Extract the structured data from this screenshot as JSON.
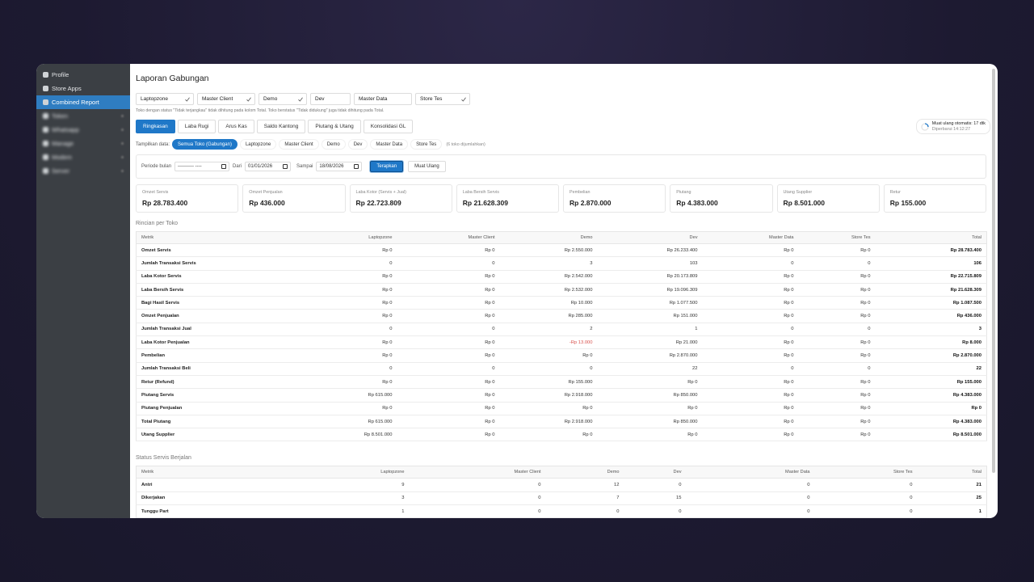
{
  "sidebar": {
    "items": [
      {
        "label": "Profile",
        "blurred": false
      },
      {
        "label": "Store Apps",
        "blurred": false
      },
      {
        "label": "Combined Report",
        "blurred": false
      },
      {
        "label": "Token",
        "blurred": true
      },
      {
        "label": "Whatsapp",
        "blurred": true
      },
      {
        "label": "Manage",
        "blurred": true
      },
      {
        "label": "Modem",
        "blurred": true
      },
      {
        "label": "Server",
        "blurred": true
      }
    ],
    "active": 2
  },
  "header": {
    "title": "Laporan Gabungan"
  },
  "stores": [
    {
      "label": "Laptopzone",
      "checked": true
    },
    {
      "label": "Master Client",
      "checked": true
    },
    {
      "label": "Demo",
      "checked": true
    },
    {
      "label": "Dev",
      "checked": false
    },
    {
      "label": "Master Data",
      "checked": false
    },
    {
      "label": "Store Tes",
      "checked": true
    }
  ],
  "store_note": "Toko dengan status \"Tidak terjangkau\" tidak dihitung pada kolom Total. Toko berstatus \"Tidak didukung\" juga tidak dihitung pada Total.",
  "tabs": {
    "items": [
      "Ringkasan",
      "Laba Rugi",
      "Arus Kas",
      "Saldo Kantong",
      "Piutang & Utang",
      "Konsolidasi GL"
    ],
    "active": 0
  },
  "auto_reload": {
    "label": "Muat ulang otomatis: 17 dtk",
    "updated": "Diperbarui 14:12:27"
  },
  "filter": {
    "label": "Tampilkan data:",
    "options": [
      "Semua Toko (Gabungan)",
      "Laptopzone",
      "Master Client",
      "Demo",
      "Dev",
      "Master Data",
      "Store Tes"
    ],
    "active": 0,
    "note": "(6 toko dijumlahkan)"
  },
  "period": {
    "month_label": "Periode bulan",
    "month_value": "---------- ----",
    "from_label": "Dari",
    "from_value": "01/01/2026",
    "to_label": "Sampai",
    "to_value": "18/08/2026",
    "apply": "Terapkan",
    "reload": "Muat Ulang"
  },
  "kpis": [
    {
      "label": "Omzet Servis",
      "value": "Rp 28.783.400"
    },
    {
      "label": "Omzet Penjualan",
      "value": "Rp 436.000"
    },
    {
      "label": "Laba Kotor (Servis + Jual)",
      "value": "Rp 22.723.809"
    },
    {
      "label": "Laba Bersih Servis",
      "value": "Rp 21.628.309"
    },
    {
      "label": "Pembelian",
      "value": "Rp 2.870.000"
    },
    {
      "label": "Piutang",
      "value": "Rp 4.383.000"
    },
    {
      "label": "Utang Supplier",
      "value": "Rp 8.501.000"
    },
    {
      "label": "Retur",
      "value": "Rp 155.000"
    }
  ],
  "detail_table": {
    "title": "Rincian per Toko",
    "columns": [
      "Metrik",
      "Laptopzone",
      "Master Client",
      "Demo",
      "Dev",
      "Master Data",
      "Store Tes",
      "Total"
    ],
    "rows": [
      [
        "Omzet Servis",
        "Rp 0",
        "Rp 0",
        "Rp 2.550.000",
        "Rp 26.233.400",
        "Rp 0",
        "Rp 0",
        "Rp 28.783.400"
      ],
      [
        "Jumlah Transaksi Servis",
        "0",
        "0",
        "3",
        "103",
        "0",
        "0",
        "106"
      ],
      [
        "Laba Kotor Servis",
        "Rp 0",
        "Rp 0",
        "Rp 2.542.000",
        "Rp 20.173.809",
        "Rp 0",
        "Rp 0",
        "Rp 22.715.809"
      ],
      [
        "Laba Bersih Servis",
        "Rp 0",
        "Rp 0",
        "Rp 2.532.000",
        "Rp 19.096.309",
        "Rp 0",
        "Rp 0",
        "Rp 21.628.309"
      ],
      [
        "Bagi Hasil Servis",
        "Rp 0",
        "Rp 0",
        "Rp 10.000",
        "Rp 1.077.500",
        "Rp 0",
        "Rp 0",
        "Rp 1.087.500"
      ],
      [
        "Omzet Penjualan",
        "Rp 0",
        "Rp 0",
        "Rp 285.000",
        "Rp 151.000",
        "Rp 0",
        "Rp 0",
        "Rp 436.000"
      ],
      [
        "Jumlah Transaksi Jual",
        "0",
        "0",
        "2",
        "1",
        "0",
        "0",
        "3"
      ],
      [
        "Laba Kotor Penjualan",
        "Rp 0",
        "Rp 0",
        "-Rp 13.000",
        "Rp 21.000",
        "Rp 0",
        "Rp 0",
        "Rp 8.000"
      ],
      [
        "Pembelian",
        "Rp 0",
        "Rp 0",
        "Rp 0",
        "Rp 2.870.000",
        "Rp 0",
        "Rp 0",
        "Rp 2.870.000"
      ],
      [
        "Jumlah Transaksi Beli",
        "0",
        "0",
        "0",
        "22",
        "0",
        "0",
        "22"
      ],
      [
        "Retur (Refund)",
        "Rp 0",
        "Rp 0",
        "Rp 155.000",
        "Rp 0",
        "Rp 0",
        "Rp 0",
        "Rp 155.000"
      ],
      [
        "Piutang Servis",
        "Rp 615.000",
        "Rp 0",
        "Rp 2.918.000",
        "Rp 850.000",
        "Rp 0",
        "Rp 0",
        "Rp 4.383.000"
      ],
      [
        "Piutang Penjualan",
        "Rp 0",
        "Rp 0",
        "Rp 0",
        "Rp 0",
        "Rp 0",
        "Rp 0",
        "Rp 0"
      ],
      [
        "Total Piutang",
        "Rp 615.000",
        "Rp 0",
        "Rp 2.918.000",
        "Rp 850.000",
        "Rp 0",
        "Rp 0",
        "Rp 4.383.000"
      ],
      [
        "Utang Supplier",
        "Rp 8.501.000",
        "Rp 0",
        "Rp 0",
        "Rp 0",
        "Rp 0",
        "Rp 0",
        "Rp 8.501.000"
      ]
    ]
  },
  "status_table": {
    "title": "Status Servis Berjalan",
    "columns": [
      "Metrik",
      "Laptopzone",
      "Master Client",
      "Demo",
      "Dev",
      "Master Data",
      "Store Tes",
      "Total"
    ],
    "rows": [
      [
        "Antri",
        "9",
        "0",
        "12",
        "0",
        "0",
        "0",
        "21"
      ],
      [
        "Dikerjakan",
        "3",
        "0",
        "7",
        "15",
        "0",
        "0",
        "25"
      ],
      [
        "Tunggu Part",
        "1",
        "0",
        "0",
        "0",
        "0",
        "0",
        "1"
      ]
    ]
  }
}
